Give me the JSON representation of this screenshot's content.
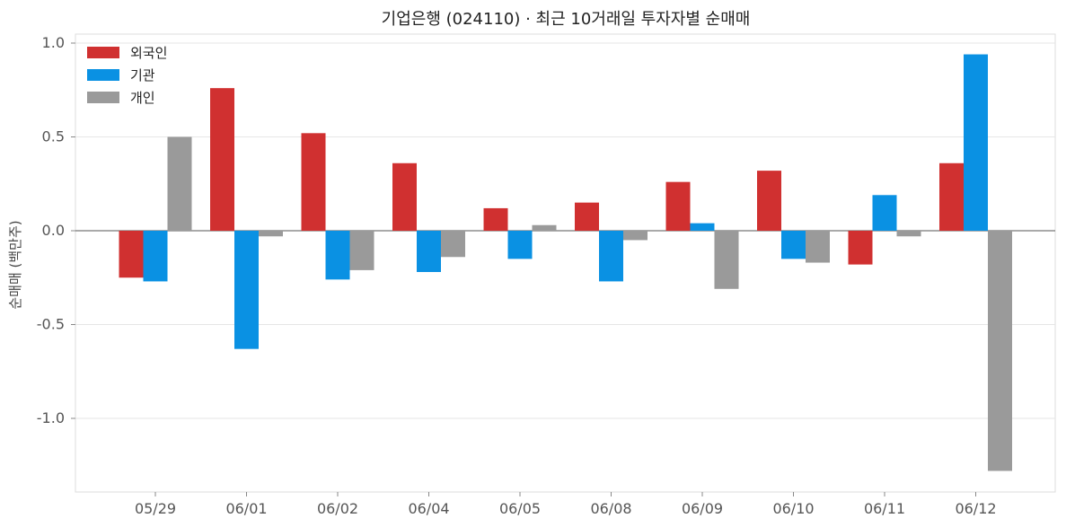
{
  "chart_data": {
    "type": "bar",
    "title": "기업은행 (024110) · 최근 10거래일 투자자별 순매매",
    "xlabel": "",
    "ylabel": "순매매 (백만주)",
    "ylim": [
      -1.4,
      1.05
    ],
    "yticks": [
      1.0,
      0.5,
      0.0,
      -0.5,
      -1.0
    ],
    "ytick_labels": [
      "1.0",
      "0.5",
      "0.0",
      "-0.5",
      "-1.0"
    ],
    "categories": [
      "05/29",
      "06/01",
      "06/02",
      "06/04",
      "06/05",
      "06/08",
      "06/09",
      "06/10",
      "06/11",
      "06/12"
    ],
    "series": [
      {
        "name": "외국인",
        "color": "#d03030",
        "values": [
          -0.25,
          0.76,
          0.52,
          0.36,
          0.12,
          0.15,
          0.26,
          0.32,
          -0.18,
          0.36
        ]
      },
      {
        "name": "기관",
        "color": "#0a91e3",
        "values": [
          -0.27,
          -0.63,
          -0.26,
          -0.22,
          -0.15,
          -0.27,
          0.04,
          -0.15,
          0.19,
          0.94
        ]
      },
      {
        "name": "개인",
        "color": "#9a9a9a",
        "values": [
          0.5,
          -0.03,
          -0.21,
          -0.14,
          0.03,
          -0.05,
          -0.31,
          -0.17,
          -0.03,
          -1.28
        ]
      }
    ],
    "legend_position": "top-left",
    "grid": true
  }
}
